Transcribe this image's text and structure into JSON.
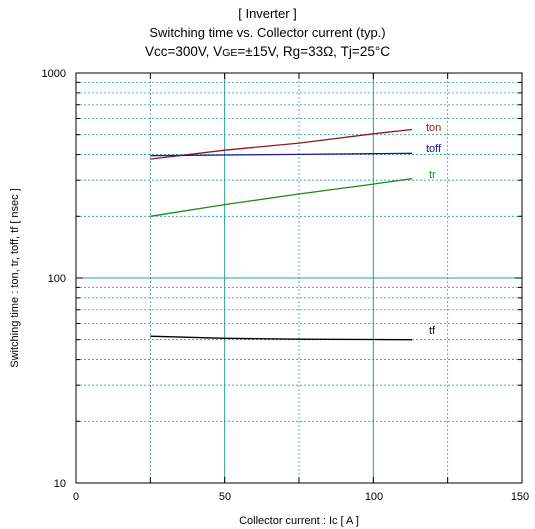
{
  "chart_data": {
    "type": "line",
    "title": "[ Inverter ]",
    "subtitle": "Switching time  vs.  Collector current  (typ.)",
    "conditions": {
      "prefix": "Vcc=300V, V",
      "ge_sub": "GE",
      "suffix": "=±15V, Rg=33Ω, Tj=25°C"
    },
    "xlabel": "Collector current  :  Ic  [ A ]",
    "ylabel": "Switching time  :  ton, tr, toff, tf  [ nsec ]",
    "xlim": [
      0,
      150
    ],
    "ylim": [
      10,
      1000
    ],
    "yscale": "log",
    "grid": true,
    "x_ticks": [
      "0",
      "50",
      "100",
      "150"
    ],
    "y_ticks": [
      "10",
      "100",
      "1000"
    ],
    "series": [
      {
        "name": "ton",
        "color": "#8b1a1a",
        "x": [
          25,
          50,
          75,
          100,
          113
        ],
        "y": [
          380,
          420,
          455,
          505,
          530
        ]
      },
      {
        "name": "toff",
        "color": "#1a1a9b",
        "x": [
          25,
          50,
          75,
          100,
          113
        ],
        "y": [
          395,
          398,
          401,
          404,
          406
        ]
      },
      {
        "name": "tr",
        "color": "#1a8a1a",
        "x": [
          25,
          50,
          75,
          100,
          113
        ],
        "y": [
          200,
          228,
          257,
          287,
          305
        ]
      },
      {
        "name": "tf",
        "color": "#000000",
        "x": [
          25,
          50,
          75,
          100,
          113
        ],
        "y": [
          52,
          50.8,
          50.3,
          50.1,
          50
        ]
      }
    ]
  }
}
